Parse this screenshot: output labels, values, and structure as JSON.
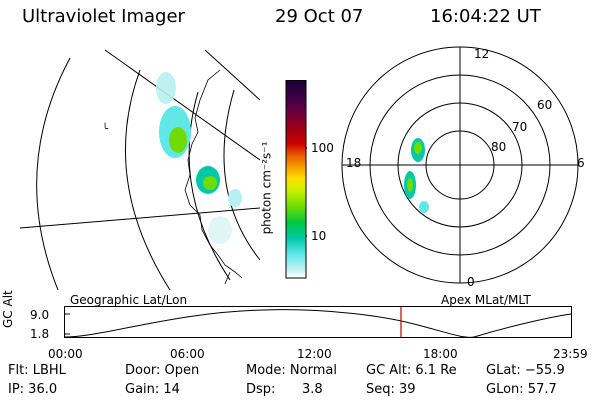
{
  "header": {
    "title": "Ultraviolet Imager",
    "date": "29 Oct 07",
    "time": "16:04:22 UT"
  },
  "geo_panel": {
    "label": "Geographic Lat/Lon"
  },
  "polar_panel": {
    "label": "Apex MLat/MLT",
    "mlt_labels": {
      "top": "12",
      "left": "18",
      "right": "6",
      "bottom": "0"
    },
    "lat_labels": [
      "60",
      "70",
      "80"
    ]
  },
  "colorbar": {
    "unit": "photon cm⁻²s⁻¹",
    "ticks": [
      "100",
      "10"
    ],
    "colors": [
      "#1a0030",
      "#3a0048",
      "#6a0040",
      "#9a0018",
      "#cc0000",
      "#e85a00",
      "#f5a000",
      "#ffe000",
      "#c8f000",
      "#6edc00",
      "#00c840",
      "#00c8a8",
      "#60e8e8",
      "#b8f0f0",
      "#ffffff"
    ]
  },
  "altitude_strip": {
    "axis_label": "GC Alt",
    "y_ticks": [
      "9.0",
      "1.8"
    ],
    "x_ticks": [
      "00:00",
      "06:00",
      "12:00",
      "18:00",
      "23:59"
    ]
  },
  "info": {
    "flt": "Flt: LBHL",
    "door": "Door: Open",
    "mode": "Mode: Normal",
    "gc_alt": "GC Alt: 6.1 Re",
    "glat": "GLat: −55.9",
    "ip": "IP: 36.0",
    "gain": "Gain: 14",
    "dsp_label": "Dsp:",
    "dsp_value": "3.8",
    "seq": "Seq: 39",
    "glon": "GLon:  57.7"
  }
}
